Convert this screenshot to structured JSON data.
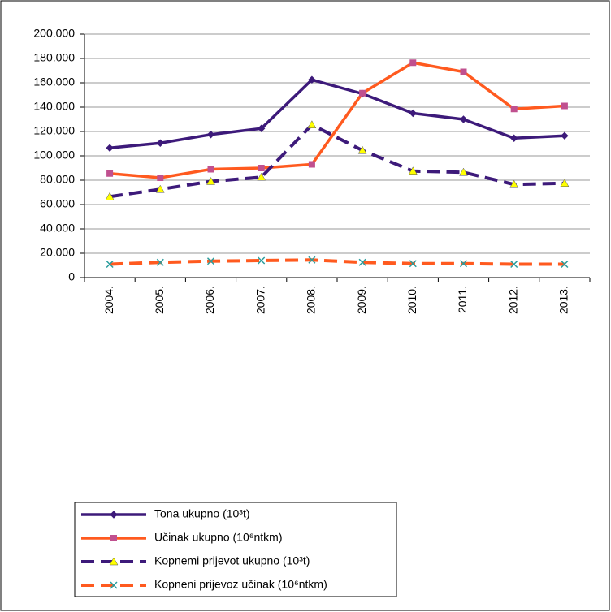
{
  "chart_data": {
    "type": "line",
    "categories": [
      "2004.",
      "2005.",
      "2006.",
      "2007.",
      "2008.",
      "2009.",
      "2010.",
      "2011.",
      "2012.",
      "2013."
    ],
    "series": [
      {
        "name": "Tona ukupno (10³t)",
        "color": "#3d1a7a",
        "marker": "diamond",
        "marker_color": "#3d1a7a",
        "linestyle": "solid",
        "values": [
          106500,
          110500,
          117500,
          122500,
          162500,
          151000,
          135000,
          130000,
          114500,
          116500
        ]
      },
      {
        "name": "Učinak ukupno (10⁶ntkm)",
        "color": "#ff5a1f",
        "marker": "square",
        "marker_color": "#c0508f",
        "linestyle": "solid",
        "values": [
          85500,
          82000,
          89000,
          90000,
          93000,
          151500,
          176500,
          169000,
          138500,
          141000
        ]
      },
      {
        "name": "Kopnemi prijevot ukupno (10³t)",
        "color": "#3d1a7a",
        "marker": "triangle",
        "marker_color": "#ffff00",
        "linestyle": "dashed",
        "values": [
          66500,
          72500,
          79000,
          82500,
          125500,
          104500,
          87500,
          86500,
          76500,
          77500
        ]
      },
      {
        "name": "Kopneni prijevoz učinak (10⁶ntkm)",
        "color": "#ff5a1f",
        "marker": "x",
        "marker_color": "#2a9d9d",
        "linestyle": "dashed",
        "values": [
          11000,
          12500,
          13500,
          14000,
          14500,
          12500,
          11500,
          11500,
          11000,
          11000
        ]
      }
    ],
    "ylim": [
      0,
      200000
    ],
    "yticks": [
      0,
      {
        "value": 20000,
        "label": "20.000"
      },
      {
        "value": 40000,
        "label": "40.000"
      },
      {
        "value": 60000,
        "label": "60.000"
      },
      {
        "value": 80000,
        "label": "80.000"
      },
      {
        "value": 100000,
        "label": "100.000"
      },
      {
        "value": 120000,
        "label": "120.000"
      },
      {
        "value": 140000,
        "label": "140.000"
      },
      {
        "value": 160000,
        "label": "160.000"
      },
      {
        "value": 180000,
        "label": "180.000"
      },
      {
        "value": 200000,
        "label": "200.000"
      }
    ],
    "grid": true
  }
}
